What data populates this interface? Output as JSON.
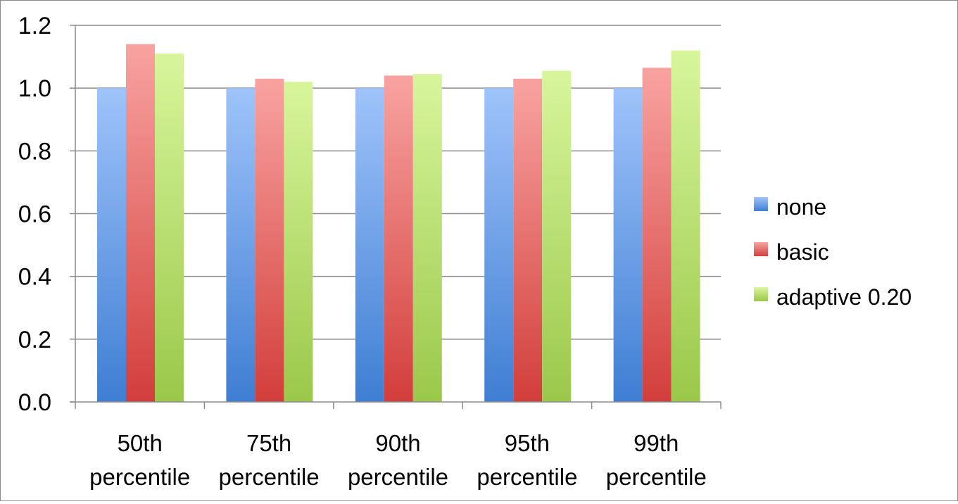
{
  "chart_data": {
    "type": "bar",
    "title": "",
    "xlabel": "",
    "ylabel": "",
    "categories": [
      [
        "50th",
        "percentile"
      ],
      [
        "75th",
        "percentile"
      ],
      [
        "90th",
        "percentile"
      ],
      [
        "95th",
        "percentile"
      ],
      [
        "99th",
        "percentile"
      ]
    ],
    "series": [
      {
        "name": "none",
        "values": [
          1.0,
          1.0,
          1.0,
          1.0,
          1.0
        ],
        "color_top": "#9fc3fa",
        "color_bottom": "#3f7ed3"
      },
      {
        "name": "basic",
        "values": [
          1.14,
          1.03,
          1.04,
          1.03,
          1.065
        ],
        "color_top": "#f8a3a1",
        "color_bottom": "#d23e3b"
      },
      {
        "name": "adaptive 0.20",
        "values": [
          1.11,
          1.02,
          1.045,
          1.055,
          1.12
        ],
        "color_top": "#d8f59c",
        "color_bottom": "#9ac84a"
      }
    ],
    "ylim": [
      0,
      1.2
    ],
    "yticks": [
      "0.0",
      "0.2",
      "0.4",
      "0.6",
      "0.8",
      "1.0",
      "1.2"
    ],
    "grid": true,
    "legend_position": "right"
  }
}
